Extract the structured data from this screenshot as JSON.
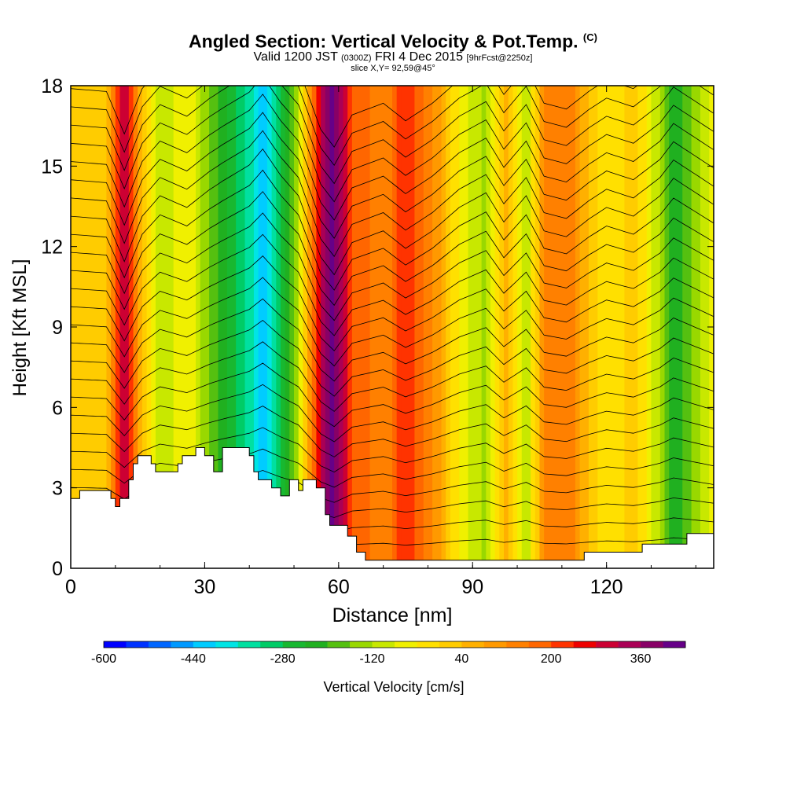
{
  "header": {
    "title_main": "Angled Section: Vertical Velocity & Pot.Temp.",
    "title_tag": "(C)",
    "valid_prefix": "Valid 1200 JST",
    "valid_zulu": "(0300Z)",
    "valid_date": "FRI 4 Dec 2015",
    "forecast_tag": "[9hrFcst@2250z]",
    "slice_info": "slice X,Y= 92,59@45°"
  },
  "chart_data": {
    "type": "heatmap",
    "xlabel": "Distance [nm]",
    "ylabel": "Height [Kft MSL]",
    "xlim": [
      0,
      144
    ],
    "ylim": [
      0,
      18
    ],
    "x_ticks": [
      0,
      30,
      60,
      90,
      120
    ],
    "y_ticks": [
      0,
      3,
      6,
      9,
      12,
      15,
      18
    ],
    "x_tick_labels": [
      "0",
      "30",
      "60",
      "90",
      "120"
    ],
    "y_tick_labels": [
      "0",
      "3",
      "6",
      "9",
      "12",
      "15",
      "18"
    ],
    "colorbar": {
      "label": "Vertical Velocity [cm/s]",
      "min": -600,
      "max": 440,
      "tick_values": [
        -600,
        -440,
        -280,
        -120,
        40,
        200,
        360
      ],
      "tick_labels": [
        "-600",
        "-440",
        "-280",
        "-120",
        "40",
        "200",
        "360"
      ],
      "colors": [
        "#0000ff",
        "#0033ff",
        "#0066ff",
        "#0099ff",
        "#00ccff",
        "#00e5e5",
        "#00e0a0",
        "#00cc66",
        "#18b830",
        "#20b020",
        "#55c010",
        "#99d800",
        "#c8e800",
        "#f0f000",
        "#ffe000",
        "#ffcc00",
        "#ffb000",
        "#ff9900",
        "#ff8000",
        "#ff6600",
        "#ff3300",
        "#ee0000",
        "#cc0033",
        "#aa0055",
        "#880066",
        "#660088"
      ]
    },
    "velocity_bands": [
      {
        "x": 0,
        "value": 20
      },
      {
        "x": 8,
        "value": 40
      },
      {
        "x": 12,
        "value": 330
      },
      {
        "x": 16,
        "value": 20
      },
      {
        "x": 20,
        "value": -120
      },
      {
        "x": 26,
        "value": -40
      },
      {
        "x": 31,
        "value": -160
      },
      {
        "x": 34,
        "value": -220
      },
      {
        "x": 40,
        "value": -330
      },
      {
        "x": 43,
        "value": -440
      },
      {
        "x": 47,
        "value": -260
      },
      {
        "x": 51,
        "value": -120
      },
      {
        "x": 56,
        "value": 300
      },
      {
        "x": 59,
        "value": 420
      },
      {
        "x": 63,
        "value": 200
      },
      {
        "x": 70,
        "value": 120
      },
      {
        "x": 75,
        "value": 240
      },
      {
        "x": 81,
        "value": 120
      },
      {
        "x": 87,
        "value": -40
      },
      {
        "x": 93,
        "value": -140
      },
      {
        "x": 97,
        "value": 60
      },
      {
        "x": 102,
        "value": -120
      },
      {
        "x": 106,
        "value": 120
      },
      {
        "x": 111,
        "value": 160
      },
      {
        "x": 116,
        "value": 40
      },
      {
        "x": 120,
        "value": -40
      },
      {
        "x": 126,
        "value": 20
      },
      {
        "x": 132,
        "value": -120
      },
      {
        "x": 135,
        "value": -240
      },
      {
        "x": 140,
        "value": -140
      },
      {
        "x": 144,
        "value": -60
      }
    ],
    "terrain_kft": [
      [
        0,
        2.6
      ],
      [
        2,
        2.9
      ],
      [
        9,
        2.6
      ],
      [
        10,
        2.3
      ],
      [
        11,
        2.6
      ],
      [
        13,
        3.3
      ],
      [
        14,
        3.9
      ],
      [
        15,
        4.2
      ],
      [
        18,
        3.9
      ],
      [
        19,
        3.6
      ],
      [
        24,
        3.9
      ],
      [
        25,
        4.2
      ],
      [
        28,
        4.5
      ],
      [
        30,
        4.2
      ],
      [
        32,
        3.6
      ],
      [
        34,
        4.5
      ],
      [
        40,
        4.2
      ],
      [
        41,
        3.6
      ],
      [
        42,
        3.3
      ],
      [
        45,
        3.0
      ],
      [
        47,
        2.7
      ],
      [
        49,
        3.3
      ],
      [
        51,
        2.9
      ],
      [
        52,
        3.3
      ],
      [
        55,
        3.0
      ],
      [
        57,
        2.0
      ],
      [
        58,
        1.6
      ],
      [
        62,
        1.2
      ],
      [
        64,
        0.6
      ],
      [
        66,
        0.3
      ],
      [
        114,
        0.3
      ],
      [
        115,
        0.6
      ],
      [
        128,
        0.9
      ],
      [
        138,
        1.3
      ],
      [
        144,
        1.3
      ]
    ]
  }
}
